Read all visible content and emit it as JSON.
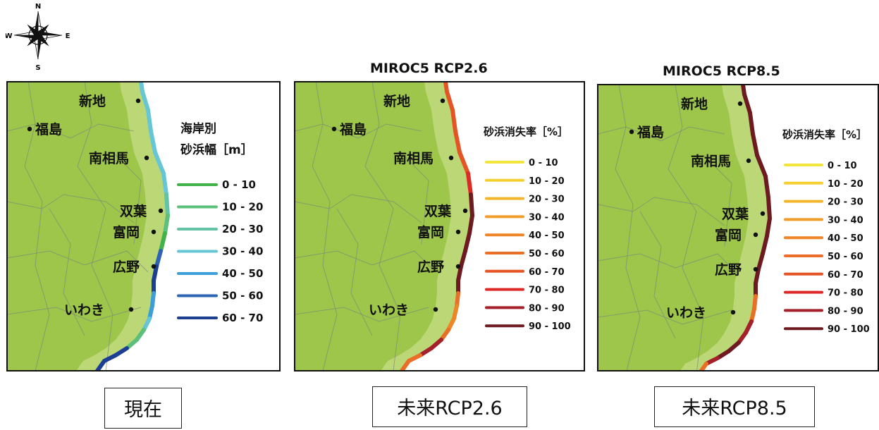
{
  "compass": {
    "n": "N",
    "s": "S",
    "e": "E",
    "w": "W"
  },
  "maps": [
    {
      "id": "current",
      "title": "",
      "legend_title_1": "海岸別",
      "legend_title_2": "砂浜幅［m］",
      "legend_items": [
        {
          "label": "0 - 10",
          "color": "#43b149"
        },
        {
          "label": "10 - 20",
          "color": "#5cbf7a"
        },
        {
          "label": "20 - 30",
          "color": "#63c3a6"
        },
        {
          "label": "30 - 40",
          "color": "#66c6d6"
        },
        {
          "label": "40 - 50",
          "color": "#3d9ed9"
        },
        {
          "label": "50 - 60",
          "color": "#2e63b3"
        },
        {
          "label": "60 - 70",
          "color": "#1d3f93"
        }
      ],
      "caption": "現在"
    },
    {
      "id": "rcp26",
      "title": "MIROC5 RCP2.6",
      "legend_title_1": "砂浜消失率［%］",
      "legend_items": [
        {
          "label": "0 - 10",
          "color": "#f3e53b"
        },
        {
          "label": "10 - 20",
          "color": "#f4cf32"
        },
        {
          "label": "20 - 30",
          "color": "#f2b62c"
        },
        {
          "label": "30 - 40",
          "color": "#f09d29"
        },
        {
          "label": "40 - 50",
          "color": "#ee8527"
        },
        {
          "label": "50 - 60",
          "color": "#ea6e25"
        },
        {
          "label": "60 - 70",
          "color": "#e55424"
        },
        {
          "label": "70 - 80",
          "color": "#dd2a26"
        },
        {
          "label": "80 - 90",
          "color": "#a4202a"
        },
        {
          "label": "90 - 100",
          "color": "#6d1a20"
        }
      ],
      "caption": "未来RCP2.6"
    },
    {
      "id": "rcp85",
      "title": "MIROC5 RCP8.5",
      "legend_title_1": "砂浜消失率［%］",
      "legend_items": [
        {
          "label": "0 - 10",
          "color": "#f3e53b"
        },
        {
          "label": "10 - 20",
          "color": "#f4cf32"
        },
        {
          "label": "20 - 30",
          "color": "#f2b62c"
        },
        {
          "label": "30 - 40",
          "color": "#f09d29"
        },
        {
          "label": "40 - 50",
          "color": "#ee8527"
        },
        {
          "label": "50 - 60",
          "color": "#ea6e25"
        },
        {
          "label": "60 - 70",
          "color": "#e55424"
        },
        {
          "label": "70 - 80",
          "color": "#dd2a26"
        },
        {
          "label": "80 - 90",
          "color": "#a4202a"
        },
        {
          "label": "90 - 100",
          "color": "#6d1a20"
        }
      ],
      "caption": "未来RCP8.5"
    }
  ],
  "places": [
    {
      "name": "新地"
    },
    {
      "name": "福島"
    },
    {
      "name": "南相馬"
    },
    {
      "name": "双葉"
    },
    {
      "name": "富岡"
    },
    {
      "name": "広野"
    },
    {
      "name": "いわき"
    }
  ],
  "colors": {
    "land": "#9dc64a",
    "land_light": "#c7de86",
    "sea": "#ffffff",
    "border": "#7e8a7a"
  }
}
